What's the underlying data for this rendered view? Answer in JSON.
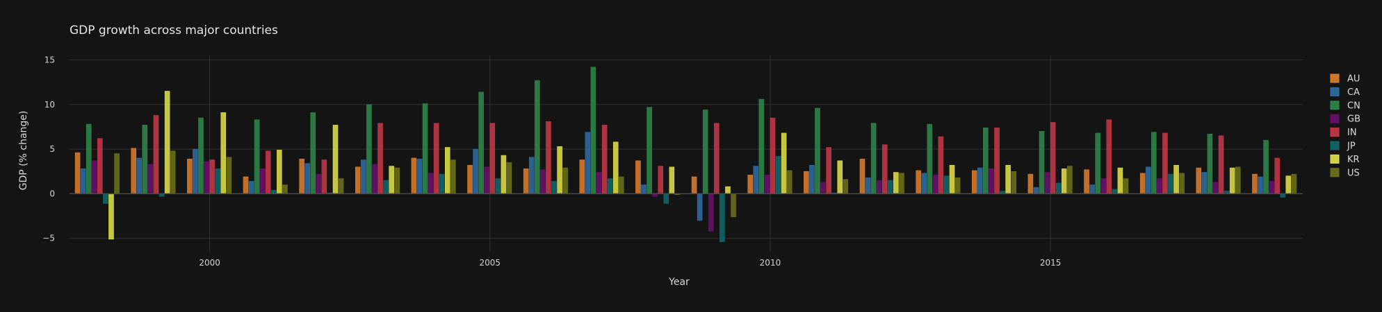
{
  "chart_data": {
    "type": "bar",
    "title": "GDP growth across major countries",
    "xlabel": "Year",
    "ylabel": "GDP (% change)",
    "ylim": [
      -6.5,
      15.5
    ],
    "xlim": [
      1997.5,
      2019.5
    ],
    "x_ticks": [
      2000,
      2005,
      2010,
      2015
    ],
    "y_ticks": [
      -5,
      0,
      5,
      10,
      15
    ],
    "y_tick_labels": [
      "−5",
      "0",
      "5",
      "10",
      "15"
    ],
    "grid": true,
    "legend_position": "right",
    "x": [
      1998,
      1999,
      2000,
      2001,
      2002,
      2003,
      2004,
      2005,
      2006,
      2007,
      2008,
      2009,
      2010,
      2011,
      2012,
      2013,
      2014,
      2015,
      2016,
      2017,
      2018,
      2019
    ],
    "series": [
      {
        "name": "AU",
        "color": "#e07f2e",
        "values": [
          4.6,
          5.1,
          3.9,
          1.9,
          3.9,
          3.0,
          4.0,
          3.2,
          2.8,
          3.8,
          3.7,
          1.9,
          2.1,
          2.5,
          3.9,
          2.6,
          2.6,
          2.2,
          2.7,
          2.3,
          2.9,
          2.2
        ]
      },
      {
        "name": "CA",
        "color": "#2f6fa6",
        "values": [
          2.8,
          4.0,
          5.0,
          1.4,
          3.4,
          3.8,
          3.9,
          5.0,
          4.1,
          6.9,
          1.0,
          -3.0,
          3.1,
          3.2,
          1.8,
          2.3,
          2.9,
          0.7,
          1.0,
          3.0,
          2.4,
          1.9
        ]
      },
      {
        "name": "CN",
        "color": "#2f8a4c",
        "values": [
          7.8,
          7.7,
          8.5,
          8.3,
          9.1,
          10.0,
          10.1,
          11.4,
          12.7,
          14.2,
          9.7,
          9.4,
          10.6,
          9.6,
          7.9,
          7.8,
          7.4,
          7.0,
          6.8,
          6.9,
          6.7,
          6.0
        ]
      },
      {
        "name": "GB",
        "color": "#6b0f6f",
        "values": [
          3.7,
          3.3,
          3.6,
          2.8,
          2.2,
          3.3,
          2.3,
          3.0,
          2.7,
          2.4,
          -0.3,
          -4.2,
          2.1,
          1.3,
          1.5,
          2.1,
          2.8,
          2.4,
          1.7,
          1.7,
          1.3,
          1.4
        ]
      },
      {
        "name": "IN",
        "color": "#c93848",
        "values": [
          6.2,
          8.8,
          3.8,
          4.8,
          3.8,
          7.9,
          7.9,
          7.9,
          8.1,
          7.7,
          3.1,
          7.9,
          8.5,
          5.2,
          5.5,
          6.4,
          7.4,
          8.0,
          8.3,
          6.8,
          6.5,
          4.0
        ]
      },
      {
        "name": "JP",
        "color": "#0e6a6c",
        "values": [
          -1.1,
          -0.3,
          2.8,
          0.4,
          0.1,
          1.5,
          2.2,
          1.7,
          1.4,
          1.7,
          -1.1,
          -5.4,
          4.2,
          0.1,
          1.5,
          2.0,
          0.3,
          1.2,
          0.5,
          2.2,
          0.3,
          -0.4
        ]
      },
      {
        "name": "KR",
        "color": "#e5e54a",
        "values": [
          -5.1,
          11.5,
          9.1,
          4.9,
          7.7,
          3.1,
          5.2,
          4.3,
          5.3,
          5.8,
          3.0,
          0.8,
          6.8,
          3.7,
          2.4,
          3.2,
          3.2,
          2.8,
          2.9,
          3.2,
          2.9,
          2.0
        ]
      },
      {
        "name": "US",
        "color": "#6e7418",
        "values": [
          4.5,
          4.8,
          4.1,
          1.0,
          1.7,
          2.9,
          3.8,
          3.5,
          2.9,
          1.9,
          -0.1,
          -2.6,
          2.6,
          1.6,
          2.3,
          1.8,
          2.5,
          3.1,
          1.7,
          2.3,
          3.0,
          2.2
        ]
      }
    ]
  }
}
